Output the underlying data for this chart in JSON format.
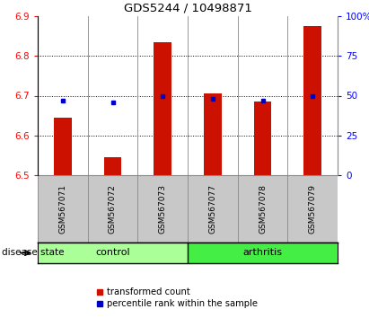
{
  "title": "GDS5244 / 10498871",
  "samples": [
    "GSM567071",
    "GSM567072",
    "GSM567073",
    "GSM567077",
    "GSM567078",
    "GSM567079"
  ],
  "transformed_count": [
    6.645,
    6.545,
    6.835,
    6.705,
    6.685,
    6.875
  ],
  "percentile_rank": [
    47,
    46,
    50,
    48,
    47,
    50
  ],
  "ylim_left": [
    6.5,
    6.9
  ],
  "ylim_right": [
    0,
    100
  ],
  "yticks_left": [
    6.5,
    6.6,
    6.7,
    6.8,
    6.9
  ],
  "yticks_right": [
    0,
    25,
    50,
    75,
    100
  ],
  "ytick_labels_right": [
    "0",
    "25",
    "50",
    "75",
    "100%"
  ],
  "groups": [
    {
      "label": "control",
      "indices": [
        0,
        1,
        2
      ],
      "color": "#aaff99"
    },
    {
      "label": "arthritis",
      "indices": [
        3,
        4,
        5
      ],
      "color": "#44ee44"
    }
  ],
  "bar_color": "#cc1100",
  "dot_color": "#0000cc",
  "bar_width": 0.35,
  "plot_bg_color": "white",
  "sample_panel_color": "#c8c8c8",
  "legend_items": [
    {
      "label": "transformed count",
      "color": "#cc1100"
    },
    {
      "label": "percentile rank within the sample",
      "color": "#0000cc"
    }
  ],
  "disease_state_label": "disease state",
  "gridlines": [
    6.6,
    6.7,
    6.8
  ]
}
